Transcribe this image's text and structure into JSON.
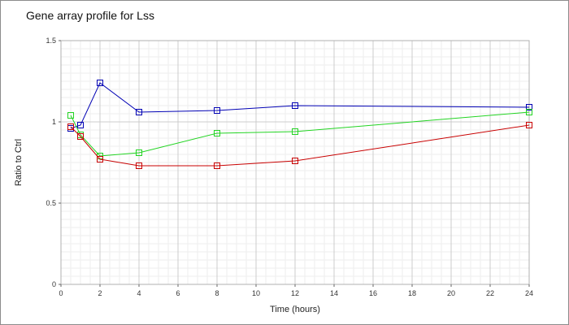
{
  "chart_data": {
    "type": "line",
    "title": "Gene array profile for Lss",
    "xlabel": "Time (hours)",
    "ylabel": "Ratio to Ctrl",
    "xlim": [
      0,
      24
    ],
    "ylim": [
      0,
      1.5
    ],
    "xticks": [
      0,
      2,
      4,
      6,
      8,
      10,
      12,
      14,
      16,
      18,
      20,
      22,
      24
    ],
    "xtick_labels": [
      "0",
      "2",
      "4",
      "6",
      "8",
      "10",
      "12",
      "14",
      "16",
      "18",
      "20",
      "22",
      "24"
    ],
    "yticks": [
      0,
      0.5,
      1,
      1.5
    ],
    "ytick_labels": [
      "0",
      "0.5",
      "1",
      "1.5"
    ],
    "grid": true,
    "marker": "square",
    "series": [
      {
        "color": "#0000b4",
        "x": [
          0.5,
          1,
          2,
          4,
          8,
          12,
          24
        ],
        "y": [
          0.96,
          0.98,
          1.24,
          1.06,
          1.07,
          1.1,
          1.09
        ]
      },
      {
        "color": "#22d422",
        "x": [
          0.5,
          1,
          2,
          4,
          8,
          12,
          24
        ],
        "y": [
          1.04,
          0.92,
          0.79,
          0.81,
          0.93,
          0.94,
          1.06
        ]
      },
      {
        "color": "#c80000",
        "x": [
          0.5,
          1,
          2,
          4,
          8,
          12,
          24
        ],
        "y": [
          0.97,
          0.91,
          0.77,
          0.73,
          0.73,
          0.76,
          0.98
        ]
      }
    ]
  }
}
